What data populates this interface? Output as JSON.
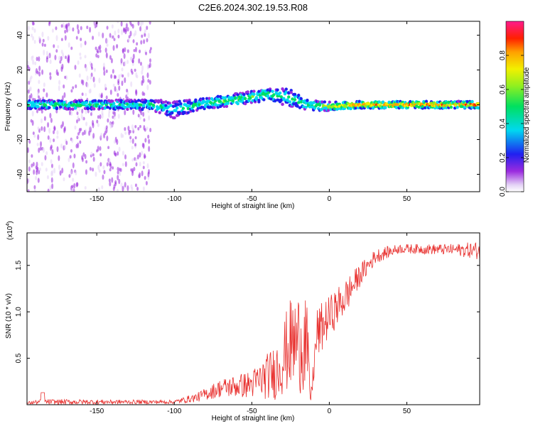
{
  "title": "C2E6.2024.302.19.53.R08",
  "chart_data": [
    {
      "type": "heatmap",
      "name": "spectrogram",
      "xlabel": "Height of straight line (km)",
      "ylabel": "Frequency (Hz)",
      "xlim": [
        -195,
        97
      ],
      "ylim": [
        -50,
        48
      ],
      "xticks": [
        -150,
        -100,
        -50,
        0,
        50
      ],
      "yticks": [
        -40,
        -20,
        0,
        20,
        40
      ],
      "colorbar": {
        "label": "Normalized spectral amplitude",
        "ticks": [
          0.0,
          0.2,
          0.4,
          0.6,
          0.8
        ],
        "range": [
          0,
          1
        ]
      },
      "ridge": [
        {
          "x": -195,
          "f": 0,
          "amp": 0.45,
          "width": 2.5
        },
        {
          "x": -150,
          "f": 0,
          "amp": 0.45,
          "width": 2.5
        },
        {
          "x": -115,
          "f": 0,
          "amp": 0.4,
          "width": 3
        },
        {
          "x": -100,
          "f": -3,
          "amp": 0.3,
          "width": 5
        },
        {
          "x": -85,
          "f": 0,
          "amp": 0.45,
          "width": 3
        },
        {
          "x": -60,
          "f": 3,
          "amp": 0.45,
          "width": 3.5
        },
        {
          "x": -40,
          "f": 6,
          "amp": 0.5,
          "width": 3.5
        },
        {
          "x": -25,
          "f": 4,
          "amp": 0.35,
          "width": 5
        },
        {
          "x": -15,
          "f": 0,
          "amp": 0.45,
          "width": 3
        },
        {
          "x": 0,
          "f": -1,
          "amp": 0.6,
          "width": 2.5
        },
        {
          "x": 20,
          "f": 0,
          "amp": 0.85,
          "width": 2
        },
        {
          "x": 97,
          "f": 0,
          "amp": 0.85,
          "width": 2
        }
      ]
    },
    {
      "type": "line",
      "name": "snr",
      "xlabel": "Height of straight line (km)",
      "ylabel": "SNR (10 * v/v)",
      "multiplier": "(x10",
      "multiplier_exp": "4",
      "multiplier_close": ")",
      "xlim": [
        -195,
        97
      ],
      "ylim": [
        0,
        1.85
      ],
      "xticks": [
        -150,
        -100,
        -50,
        0,
        50
      ],
      "yticks": [
        0.5,
        1.0,
        1.5
      ],
      "series_color": "#e8302e",
      "envelope": [
        {
          "x": -195,
          "base": 0.02,
          "noise": 0.015
        },
        {
          "x": -185,
          "base": 0.03,
          "noise": 0.03
        },
        {
          "x": -100,
          "base": 0.03,
          "noise": 0.02
        },
        {
          "x": -85,
          "base": 0.08,
          "noise": 0.05
        },
        {
          "x": -70,
          "base": 0.18,
          "noise": 0.1
        },
        {
          "x": -50,
          "base": 0.22,
          "noise": 0.15
        },
        {
          "x": -35,
          "base": 0.35,
          "noise": 0.3
        },
        {
          "x": -25,
          "base": 0.65,
          "noise": 0.5
        },
        {
          "x": -15,
          "base": 0.7,
          "noise": 0.6
        },
        {
          "x": -12,
          "base": 0.05,
          "noise": 0.05
        },
        {
          "x": -8,
          "base": 0.75,
          "noise": 0.3
        },
        {
          "x": 0,
          "base": 0.95,
          "noise": 0.22
        },
        {
          "x": 10,
          "base": 1.15,
          "noise": 0.2
        },
        {
          "x": 20,
          "base": 1.4,
          "noise": 0.12
        },
        {
          "x": 30,
          "base": 1.6,
          "noise": 0.08
        },
        {
          "x": 45,
          "base": 1.68,
          "noise": 0.05
        },
        {
          "x": 80,
          "base": 1.67,
          "noise": 0.06
        },
        {
          "x": 97,
          "base": 1.66,
          "noise": 0.1
        }
      ]
    }
  ]
}
